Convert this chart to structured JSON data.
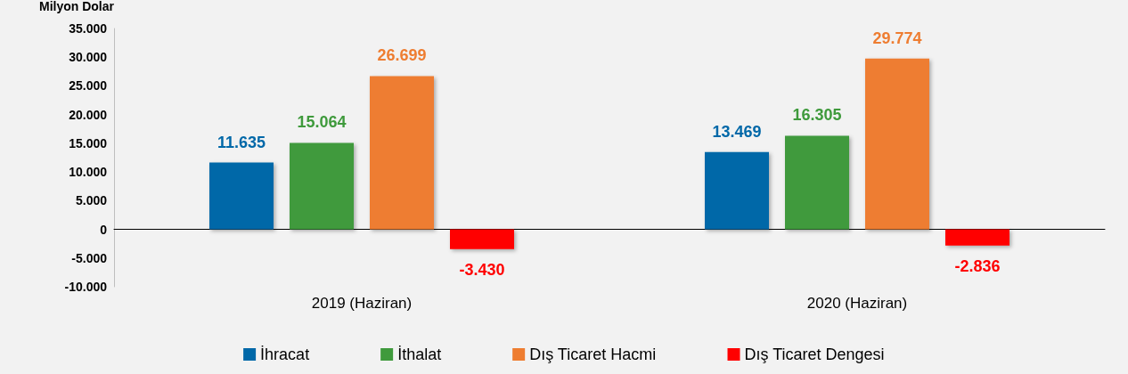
{
  "chart_data": {
    "type": "bar",
    "ylabel": "Milyon Dolar",
    "categories": [
      "2019 (Haziran)",
      "2020 (Haziran)"
    ],
    "series": [
      {
        "name": "İhracat",
        "color": "#0068a8",
        "values": [
          11635,
          13469
        ],
        "value_labels": [
          "11.635",
          "13.469"
        ]
      },
      {
        "name": "İthalat",
        "color": "#3f9a3c",
        "values": [
          15064,
          16305
        ],
        "value_labels": [
          "15.064",
          "16.305"
        ]
      },
      {
        "name": "Dış Ticaret Hacmi",
        "color": "#ee7d31",
        "values": [
          26699,
          29774
        ],
        "value_labels": [
          "26.699",
          "29.774"
        ]
      },
      {
        "name": "Dış Ticaret Dengesi",
        "color": "#ff0000",
        "values": [
          -3430,
          -2836
        ],
        "value_labels": [
          "-3.430",
          "-2.836"
        ]
      }
    ],
    "ylim": [
      -10000,
      35000
    ],
    "yticks": [
      {
        "value": -10000,
        "label": "-10.000"
      },
      {
        "value": -5000,
        "label": "-5.000"
      },
      0,
      {
        "value": 5000,
        "label": "5.000"
      },
      {
        "value": 10000,
        "label": "10.000"
      },
      {
        "value": 15000,
        "label": "15.000"
      },
      {
        "value": 20000,
        "label": "20.000"
      },
      {
        "value": 25000,
        "label": "25.000"
      },
      {
        "value": 30000,
        "label": "30.000"
      },
      {
        "value": 35000,
        "label": "35.000"
      }
    ],
    "legend": "bottom"
  }
}
